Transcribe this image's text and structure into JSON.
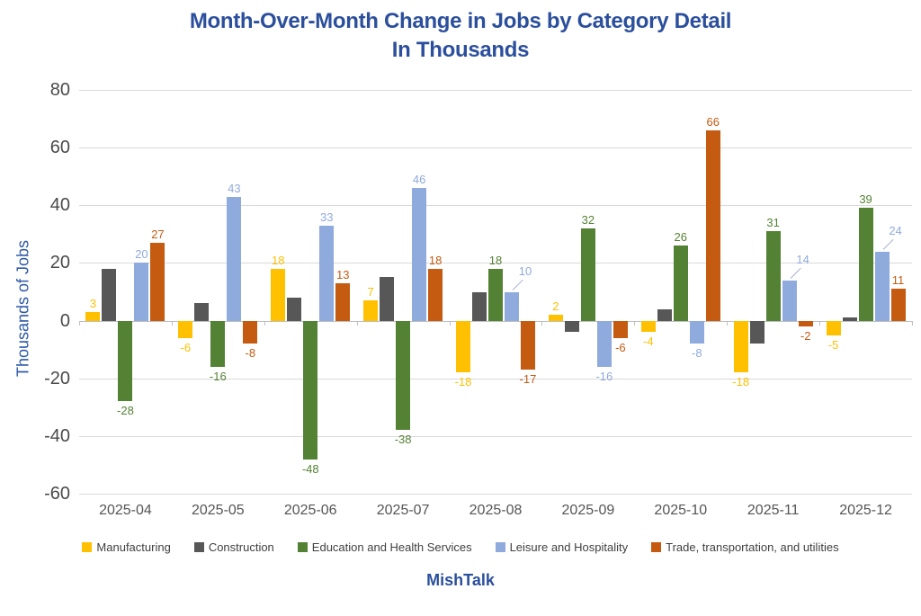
{
  "title": {
    "line1": "Month-Over-Month Change in Jobs by Category Detail",
    "line2": "In Thousands"
  },
  "y_axis_title": "Thousands of Jobs",
  "footer": "MishTalk",
  "colors": {
    "title_blue": "#2B4F9C",
    "axis_title_blue": "#2E59A8",
    "gridline": "#D9D9D9",
    "zero_line": "#BFBFBF",
    "tick_text": "#4A4A4A",
    "x_label_text": "#555555",
    "legend_text": "#3F3F3F",
    "leader_line": "#A3B2CE"
  },
  "chart_data": {
    "type": "bar",
    "title": "Month-Over-Month Change in Jobs by Category Detail In Thousands",
    "xlabel": "",
    "ylabel": "Thousands of Jobs",
    "ylim": [
      -60,
      80
    ],
    "yticks": [
      80,
      60,
      40,
      20,
      0,
      -20,
      -40,
      -60
    ],
    "grid": true,
    "legend_position": "bottom",
    "categories": [
      "2025-04",
      "2025-05",
      "2025-06",
      "2025-07",
      "2025-08",
      "2025-09",
      "2025-10",
      "2025-11",
      "2025-12"
    ],
    "series": [
      {
        "name": "Manufacturing",
        "color": "#FFC000",
        "values": [
          3,
          -6,
          18,
          7,
          -18,
          2,
          -4,
          -18,
          -5
        ],
        "show_labels": true,
        "leader_line_indices": []
      },
      {
        "name": "Construction",
        "color": "#575757",
        "values": [
          18,
          6,
          8,
          15,
          10,
          -4,
          4,
          -8,
          1
        ],
        "show_labels": false,
        "leader_line_indices": []
      },
      {
        "name": "Education and Health Services",
        "color": "#548235",
        "values": [
          -28,
          -16,
          -48,
          -38,
          18,
          32,
          26,
          31,
          39
        ],
        "show_labels": true,
        "leader_line_indices": []
      },
      {
        "name": "Leisure and Hospitality",
        "color": "#8FAADC",
        "values": [
          20,
          43,
          33,
          46,
          10,
          -16,
          -8,
          14,
          24
        ],
        "show_labels": true,
        "leader_line_indices": [
          4,
          7,
          8
        ]
      },
      {
        "name": "Trade, transportation, and utilities",
        "color": "#C55A11",
        "values": [
          27,
          -8,
          13,
          18,
          -17,
          -6,
          66,
          -2,
          11
        ],
        "show_labels": true,
        "leader_line_indices": []
      }
    ]
  }
}
